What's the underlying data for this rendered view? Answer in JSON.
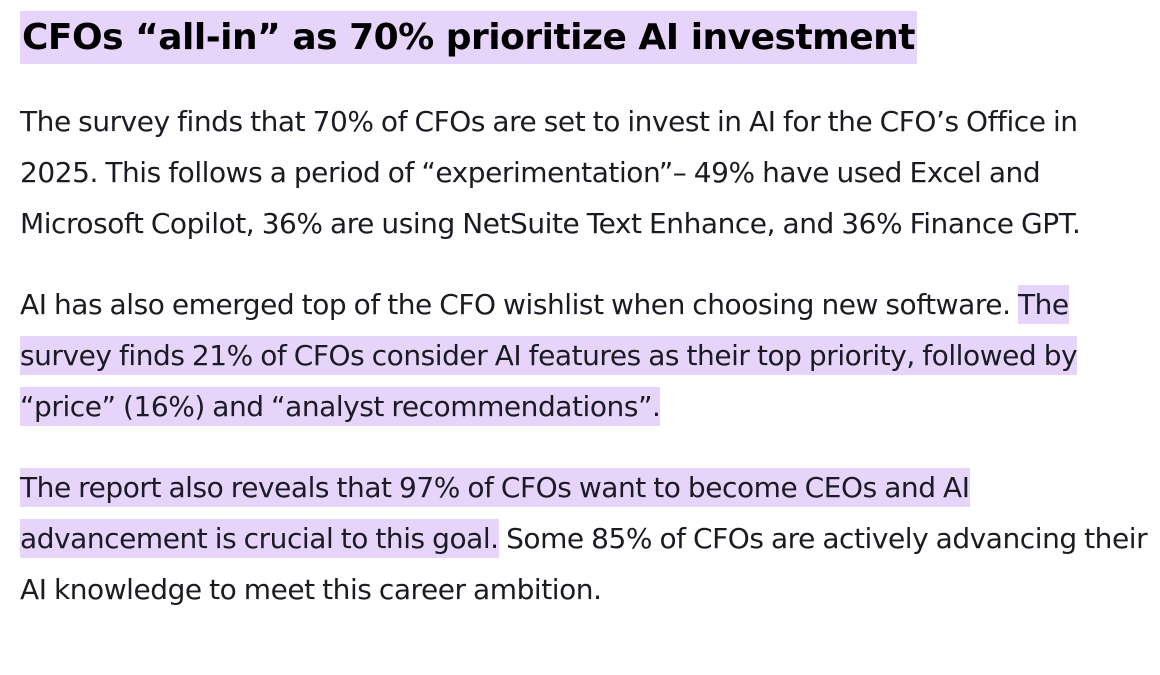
{
  "article": {
    "headline": "CFOs “all-in” as 70% prioritize AI investment",
    "paragraphs": [
      {
        "segments": [
          {
            "text": "The survey finds that 70% of CFOs are set to invest in AI for the CFO’s Office in 2025. This follows a period of “experimentation”– 49% have used  Excel and Microsoft Copilot, 36% are using NetSuite Text Enhance, and 36% Finance GPT.",
            "highlighted": false
          }
        ]
      },
      {
        "segments": [
          {
            "text": "AI has also emerged top of the CFO wishlist when choosing new software. ",
            "highlighted": false
          },
          {
            "text": "The survey finds 21% of CFOs consider AI features as their top priority, followed by “price” (16%) and “analyst recommendations”.",
            "highlighted": true
          }
        ]
      },
      {
        "segments": [
          {
            "text": "The report also reveals that 97% of CFOs want to become CEOs and AI advancement is crucial to this goal.",
            "highlighted": true
          },
          {
            "text": " Some 85% of CFOs are actively advancing their AI knowledge to meet this career ambition.",
            "highlighted": false
          }
        ]
      }
    ]
  },
  "colors": {
    "highlight": "#e6d4fb",
    "text": "#1b1b24",
    "headline": "#000000"
  }
}
